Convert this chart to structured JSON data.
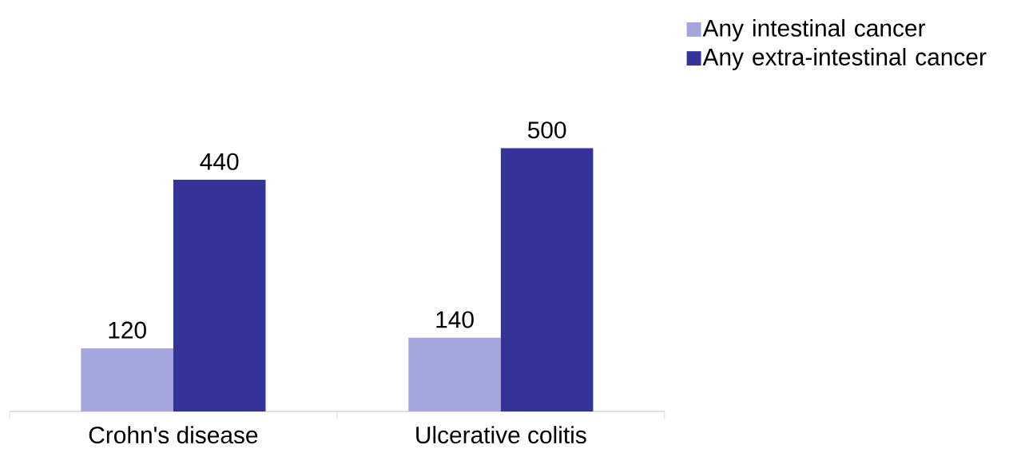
{
  "chart_data": {
    "type": "bar",
    "categories": [
      "Crohn's disease",
      "Ulcerative colitis"
    ],
    "series": [
      {
        "name": "Any intestinal cancer",
        "color": "#a5a5dd",
        "values": [
          120,
          140
        ]
      },
      {
        "name": "Any extra-intestinal cancer",
        "color": "#333399",
        "values": [
          440,
          500
        ]
      }
    ],
    "data_labels": true,
    "legend": "top right"
  }
}
